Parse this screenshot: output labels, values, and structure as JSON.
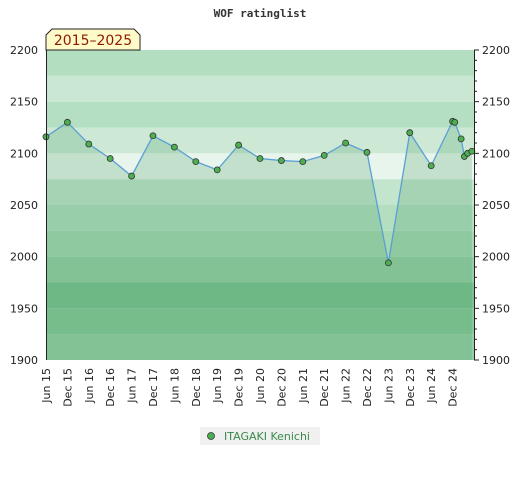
{
  "chart_data": {
    "type": "line",
    "title": "WOF ratinglist",
    "period_badge": "2015–2025",
    "ylim": [
      1900,
      2200
    ],
    "yticks": [
      1900,
      1950,
      2000,
      2050,
      2100,
      2150,
      2200
    ],
    "xlim": [
      0,
      20
    ],
    "xtick_labels": [
      "Jun 15",
      "Dec 15",
      "Jun 16",
      "Dec 16",
      "Jun 17",
      "Dec 17",
      "Jun 18",
      "Dec 18",
      "Jun 19",
      "Dec 19",
      "Jun 20",
      "Dec 20",
      "Jun 21",
      "Dec 21",
      "Jun 22",
      "Dec 22",
      "Jun 23",
      "Dec 23",
      "Jun 24",
      "Dec 24"
    ],
    "legend": {
      "position": "bottom-center"
    },
    "grid": false,
    "series": [
      {
        "name": "ITAGAKI Kenichi",
        "color": "#5a9fd4",
        "marker_color": "#4caf50",
        "x": [
          0,
          1,
          2,
          3,
          4,
          5,
          6,
          7,
          8,
          9,
          10,
          11,
          12,
          13,
          14,
          15,
          16,
          17,
          18,
          19,
          19.1,
          19.4,
          19.55,
          19.7,
          19.9
        ],
        "values": [
          2116,
          2130,
          2109,
          2095,
          2078,
          2117,
          2106,
          2092,
          2084,
          2108,
          2095,
          2093,
          2092,
          2098,
          2110,
          2101,
          1994,
          2120,
          2088,
          2131,
          2130,
          2114,
          2097,
          2100,
          2102
        ]
      }
    ]
  }
}
